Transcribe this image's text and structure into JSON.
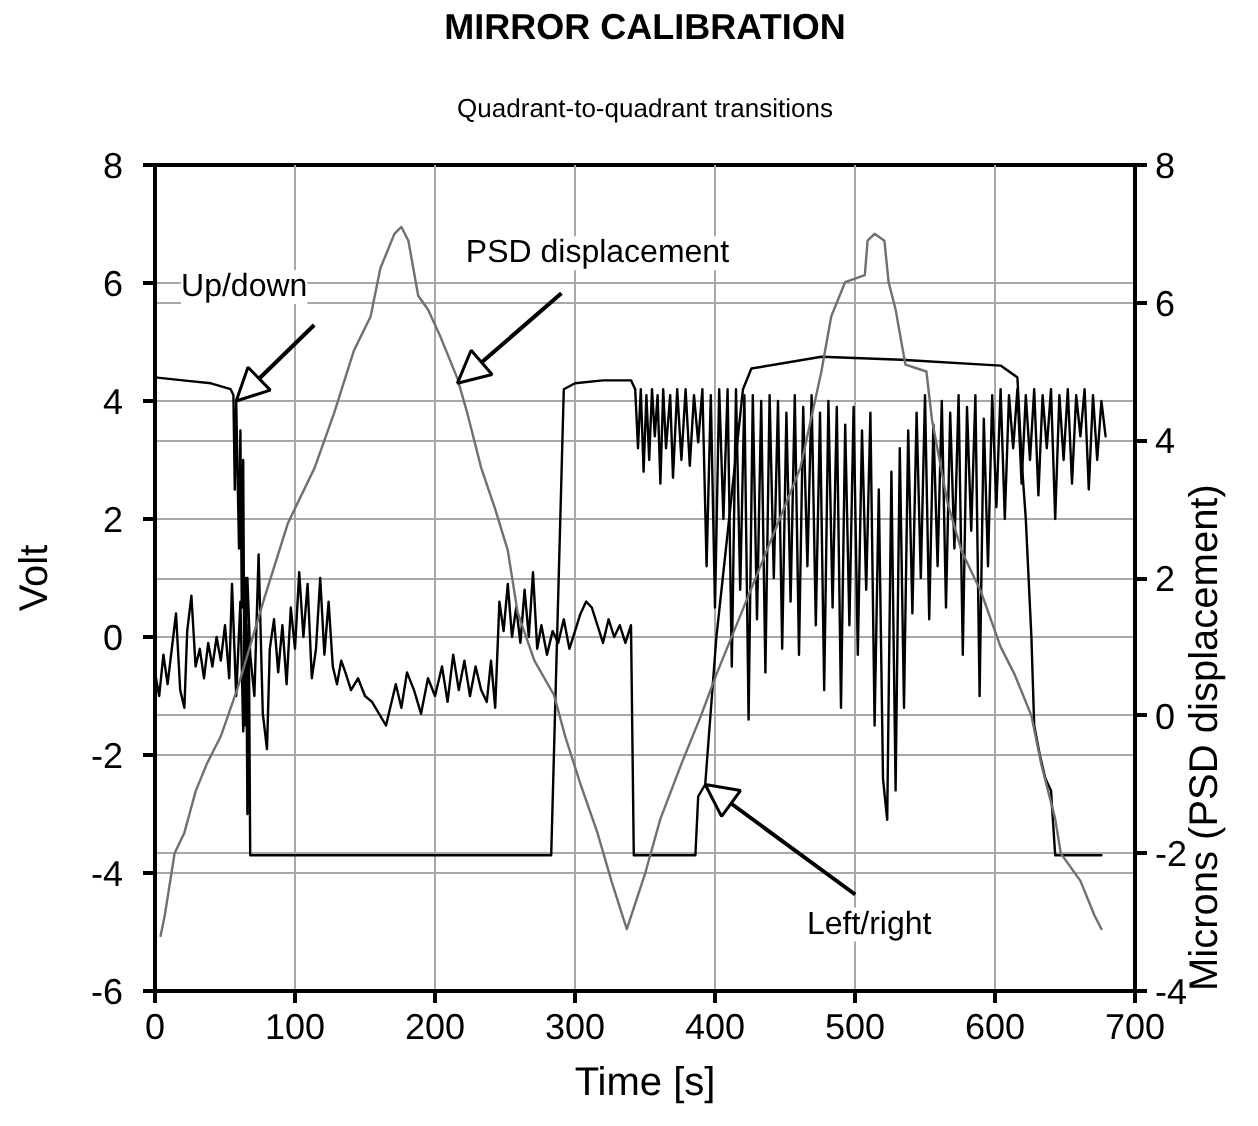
{
  "chart_data": {
    "type": "line",
    "title": "MIRROR CALIBRATION",
    "subtitle": "Quadrant-to-quadrant transitions",
    "xlabel": "Time [s]",
    "ylabel": "Volt",
    "y2label": "Microns (PSD displacement)",
    "xlim": [
      0,
      700
    ],
    "xticks": [
      0,
      100,
      200,
      300,
      400,
      500,
      600,
      700
    ],
    "ylim": [
      -6,
      8
    ],
    "yticks": [
      -6,
      -4,
      -2,
      0,
      2,
      4,
      6,
      8
    ],
    "y2lim": [
      -4,
      8
    ],
    "y2ticks": [
      -4,
      -2,
      0,
      2,
      4,
      6,
      8
    ],
    "grid": true,
    "series": [
      {
        "color": "#000000",
        "x": [
          0,
          20,
          40,
          54,
          56,
          57,
          58,
          60,
          61,
          62,
          63,
          64,
          65,
          66,
          67,
          68,
          100,
          150,
          200,
          250,
          283,
          292,
          300,
          320,
          340,
          343,
          345,
          347,
          349,
          351,
          353,
          355,
          357,
          359,
          361,
          363,
          365,
          368,
          370,
          373,
          376,
          379,
          382,
          385,
          388,
          391,
          394,
          397,
          400,
          403,
          406,
          409,
          412,
          415,
          418,
          421,
          424,
          427,
          430,
          433,
          436,
          439,
          442,
          445,
          448,
          451,
          454,
          457,
          460,
          463,
          466,
          469,
          472,
          475,
          478,
          481,
          484,
          487,
          490,
          493,
          496,
          499,
          502,
          505,
          508,
          511,
          514,
          517,
          520,
          523,
          526,
          529,
          532,
          535,
          538,
          541,
          544,
          547,
          550,
          553,
          556,
          559,
          562,
          565,
          568,
          571,
          574,
          577,
          580,
          583,
          586,
          589,
          592,
          595,
          598,
          601,
          604,
          607,
          610,
          613,
          616,
          619,
          622,
          625,
          628,
          631,
          634,
          637,
          640,
          643,
          646,
          649,
          652,
          655,
          658,
          661,
          664,
          667,
          670,
          673,
          676,
          679
        ],
        "values": [
          4.4,
          4.35,
          4.3,
          4.2,
          4.1,
          2.5,
          4.0,
          1.5,
          3.5,
          0.5,
          3.0,
          -1.5,
          1.0,
          -3.0,
          0.2,
          -3.7,
          -3.7,
          -3.7,
          -3.7,
          -3.7,
          -3.7,
          4.2,
          4.3,
          4.35,
          4.35,
          4.2,
          3.2,
          4.2,
          2.8,
          4.1,
          3.0,
          4.2,
          3.4,
          4.1,
          2.6,
          4.2,
          3.2,
          4.1,
          2.7,
          4.2,
          3.0,
          4.2,
          2.9,
          4.1,
          3.3,
          4.2,
          1.2,
          4.1,
          0.5,
          4.2,
          2.0,
          4.2,
          -0.5,
          4.2,
          0.8,
          4.1,
          -1.4,
          4.1,
          0.3,
          4.0,
          -0.6,
          4.1,
          1.0,
          4.0,
          -0.2,
          3.8,
          0.6,
          4.1,
          -0.3,
          3.9,
          1.2,
          4.1,
          0.2,
          3.8,
          -0.9,
          4.0,
          0.5,
          3.9,
          -1.2,
          3.6,
          0.2,
          3.9,
          -0.3,
          3.5,
          0.8,
          3.8,
          -1.5,
          2.5,
          -2.4,
          -3.1,
          2.8,
          -2.6,
          3.2,
          -1.2,
          3.5,
          0.4,
          3.8,
          1.0,
          4.1,
          0.3,
          3.6,
          1.2,
          4.0,
          0.5,
          3.8,
          1.5,
          4.1,
          -0.3,
          3.9,
          1.8,
          4.1,
          -1.0,
          3.7,
          1.2,
          4.1,
          2.2,
          4.2,
          2.0,
          4.1,
          3.2,
          4.2,
          2.6,
          4.1,
          3.0,
          4.2,
          2.4,
          4.1,
          3.2,
          4.2,
          2.0,
          4.1,
          3.0,
          4.2,
          2.6,
          4.1,
          3.4,
          4.2,
          2.5,
          4.1,
          3.0,
          4.0,
          3.4
        ]
      },
      {
        "color": "#000000",
        "x": [
          0,
          3,
          6,
          9,
          12,
          15,
          18,
          21,
          23,
          26,
          29,
          32,
          35,
          38,
          41,
          44,
          47,
          50,
          53,
          55,
          58,
          61,
          63,
          66,
          68,
          71,
          74,
          77,
          80,
          82,
          85,
          88,
          91,
          94,
          97,
          100,
          103,
          106,
          109,
          112,
          115,
          118,
          121,
          124,
          127,
          130,
          133,
          136,
          140,
          145,
          150,
          155,
          160,
          165,
          168,
          172,
          176,
          180,
          185,
          190,
          195,
          200,
          205,
          209,
          213,
          217,
          221,
          225,
          229,
          233,
          237,
          240,
          243,
          246,
          249,
          252,
          255,
          258,
          261,
          264,
          267,
          270,
          273,
          276,
          280,
          284,
          288,
          292,
          296,
          300,
          304,
          308,
          312,
          316,
          320,
          324,
          328,
          332,
          336,
          340,
          342,
          386,
          388,
          393,
          401,
          411,
          420,
          426,
          476,
          533,
          604,
          616,
          619,
          622,
          626,
          628,
          632,
          636,
          640,
          643,
          676
        ],
        "values": [
          -0.6,
          -1.0,
          -0.3,
          -0.8,
          -0.2,
          0.4,
          -0.9,
          -1.2,
          0.1,
          0.7,
          -0.5,
          -0.2,
          -0.7,
          -0.1,
          -0.5,
          0.0,
          -0.4,
          0.2,
          -0.7,
          0.9,
          -1.0,
          0.6,
          -1.6,
          1.0,
          -0.3,
          -1.0,
          1.4,
          -1.3,
          -1.9,
          -0.2,
          0.3,
          -0.6,
          0.2,
          -0.8,
          0.5,
          -0.2,
          1.1,
          0.0,
          0.9,
          -0.7,
          -0.2,
          1.0,
          -0.3,
          0.6,
          -0.5,
          -0.8,
          -0.4,
          -0.6,
          -0.9,
          -0.7,
          -1.0,
          -1.1,
          -1.3,
          -1.5,
          -1.2,
          -0.8,
          -1.2,
          -0.6,
          -0.9,
          -1.3,
          -0.7,
          -1.0,
          -0.5,
          -1.1,
          -0.3,
          -0.9,
          -0.4,
          -1.0,
          -0.5,
          -0.9,
          -1.1,
          -0.4,
          -1.2,
          0.6,
          0.1,
          0.9,
          0.0,
          0.5,
          -0.1,
          0.8,
          0.0,
          1.1,
          -0.2,
          0.2,
          -0.3,
          0.1,
          -0.1,
          0.3,
          -0.2,
          0.1,
          0.4,
          0.6,
          0.5,
          0.2,
          -0.1,
          0.3,
          0.0,
          0.2,
          -0.1,
          0.2,
          -3.7,
          -3.7,
          -2.7,
          -2.5,
          0.0,
          2.2,
          4.2,
          4.55,
          4.75,
          4.7,
          4.6,
          4.4,
          3.0,
          2.0,
          0.0,
          -1.5,
          -2.0,
          -2.4,
          -2.6,
          -3.7,
          -3.7
        ]
      },
      {
        "color": "#707070",
        "axis": "y2",
        "x": [
          4,
          7,
          14,
          21,
          29,
          37,
          47,
          59,
          78,
          95,
          114,
          128,
          142,
          154,
          161,
          171,
          176,
          181,
          188,
          195,
          204,
          216,
          223,
          233,
          243,
          252,
          259,
          271,
          285,
          293,
          304,
          316,
          326,
          337,
          350,
          361,
          376,
          390,
          401,
          461,
          476,
          483,
          493,
          507,
          509,
          514,
          521,
          524,
          529,
          536,
          551,
          555,
          566,
          576,
          590,
          604,
          614,
          626,
          633,
          643,
          647,
          661,
          671,
          676
        ],
        "values": [
          -3.2,
          -2.9,
          -2.0,
          -1.7,
          -1.1,
          -0.7,
          -0.3,
          0.4,
          1.7,
          2.8,
          3.6,
          4.4,
          5.3,
          5.8,
          6.5,
          7.0,
          7.1,
          6.9,
          6.1,
          5.9,
          5.5,
          4.9,
          4.4,
          3.6,
          3.0,
          2.4,
          1.5,
          0.8,
          0.3,
          -0.3,
          -1.0,
          -1.7,
          -2.4,
          -3.1,
          -2.3,
          -1.5,
          -0.7,
          0.0,
          0.6,
          3.6,
          5.0,
          5.8,
          6.3,
          6.4,
          6.9,
          7.0,
          6.9,
          6.3,
          5.9,
          5.1,
          5.0,
          4.3,
          3.1,
          2.4,
          1.8,
          1.0,
          0.6,
          0.0,
          -0.7,
          -1.5,
          -2.0,
          -2.4,
          -2.9,
          -3.1
        ]
      }
    ],
    "annotations": [
      {
        "text": "Up/down",
        "x": 58,
        "y": 4.0
      },
      {
        "text": "PSD displacement",
        "x": 216,
        "y": 4.3
      },
      {
        "text": "Left/right",
        "x": 393,
        "y": -2.5
      }
    ]
  }
}
